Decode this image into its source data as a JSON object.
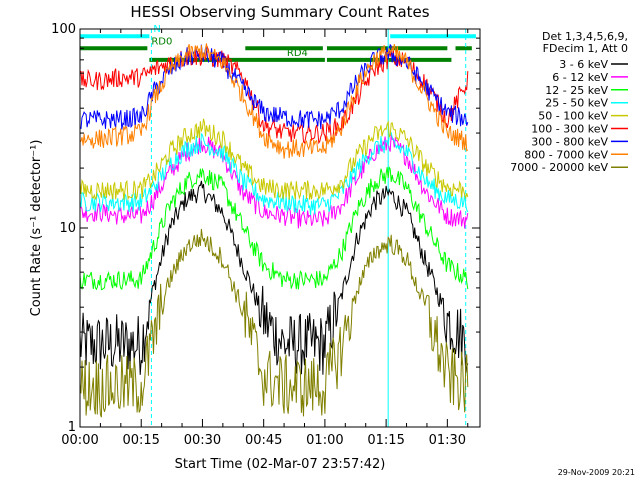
{
  "chart_data": {
    "type": "line",
    "title": "HESSI Observing Summary Count Rates",
    "xlabel": "Start Time (02-Mar-07 23:57:42)",
    "ylabel": "Count Rate (s⁻¹ detector⁻¹)",
    "yscale": "log",
    "ylim": [
      1,
      100
    ],
    "xlim_minutes": [
      0,
      98
    ],
    "x_ticks": [
      {
        "t": 0,
        "label": "00:00"
      },
      {
        "t": 15,
        "label": "00:15"
      },
      {
        "t": 30,
        "label": "00:30"
      },
      {
        "t": 45,
        "label": "00:45"
      },
      {
        "t": 60,
        "label": "01:00"
      },
      {
        "t": 75,
        "label": "01:15"
      },
      {
        "t": 90,
        "label": "01:30"
      }
    ],
    "y_ticks": [
      {
        "v": 1,
        "label": "1"
      },
      {
        "v": 10,
        "label": "10"
      },
      {
        "v": 100,
        "label": "100"
      }
    ],
    "legend_header": [
      "Det 1,3,4,5,6,9,",
      "FDecim 1, Att 0"
    ],
    "legend_placement": "right",
    "footer_date": "29-Nov-2009 20:21",
    "flags": [
      {
        "label": "N",
        "color": "#00ffff",
        "level": 92,
        "segments": [
          [
            0,
            17
          ],
          [
            76,
            97
          ]
        ]
      },
      {
        "label": "RD0",
        "color": "#008000",
        "level": 80,
        "segments": [
          [
            0,
            16.5
          ],
          [
            40.5,
            59.5
          ],
          [
            60.5,
            90
          ],
          [
            92,
            96
          ]
        ]
      },
      {
        "label": "RD4",
        "color": "#008000",
        "level": 70,
        "segments": [
          [
            17,
            60
          ],
          [
            60.5,
            91
          ]
        ]
      }
    ],
    "vlines": [
      {
        "t": 0,
        "style": "solid",
        "color": "#00ffff"
      },
      {
        "t": 17.5,
        "style": "dashed",
        "color": "#00ffff"
      },
      {
        "t": 75.5,
        "style": "solid",
        "color": "#00ffff"
      },
      {
        "t": 94.5,
        "style": "dashed",
        "color": "#00ffff"
      }
    ],
    "x": [
      0,
      5,
      10,
      15,
      18,
      22,
      26,
      30,
      35,
      40,
      45,
      50,
      55,
      60,
      64,
      68,
      72,
      76,
      80,
      85,
      90,
      95
    ],
    "series": [
      {
        "name": "3 - 6 keV",
        "color": "#000000",
        "values": [
          2.6,
          2.6,
          2.6,
          2.6,
          5,
          10,
          14,
          15.5,
          12,
          6.5,
          3.5,
          2.6,
          2.6,
          2.6,
          4.5,
          9,
          13.5,
          15,
          12,
          6.5,
          3.5,
          2.6
        ]
      },
      {
        "name": "6 - 12 keV",
        "color": "#ff00ff",
        "values": [
          12,
          12,
          11.5,
          11.5,
          14,
          19,
          24,
          27,
          23,
          15,
          12,
          11.5,
          11,
          11,
          13,
          18,
          24,
          27,
          23,
          15,
          11.5,
          11
        ]
      },
      {
        "name": "12 - 25 keV",
        "color": "#00ff00",
        "values": [
          5.5,
          5.5,
          5.5,
          5.5,
          8,
          13,
          17,
          19,
          16,
          10,
          6.5,
          5.5,
          5.5,
          5.5,
          7.5,
          12.5,
          17,
          19,
          16,
          10,
          6.5,
          5.5
        ]
      },
      {
        "name": "25 - 50 keV",
        "color": "#00ffff",
        "values": [
          13.5,
          13.5,
          13.5,
          13.5,
          16,
          21,
          25,
          27,
          24,
          17,
          14,
          13.5,
          13,
          13,
          15,
          20,
          25,
          27,
          24,
          17,
          14,
          13.5
        ]
      },
      {
        "name": "50 - 100 keV",
        "color": "#c8c800",
        "values": [
          15.5,
          15.5,
          15.5,
          15.5,
          18,
          24,
          29,
          32,
          28,
          20,
          16,
          15.5,
          15.5,
          15.5,
          17,
          23,
          29,
          32,
          28,
          20,
          16,
          15.5
        ]
      },
      {
        "name": "100 - 300 keV",
        "color": "#ff0000",
        "values": [
          55,
          55,
          57,
          57,
          62,
          68,
          72,
          73,
          70,
          58,
          33,
          30,
          30,
          30,
          33,
          45,
          63,
          72,
          68,
          52,
          35,
          55
        ]
      },
      {
        "name": "300 - 800 keV",
        "color": "#0000ff",
        "values": [
          35,
          35,
          35,
          36,
          48,
          62,
          72,
          75,
          68,
          50,
          38,
          36,
          35,
          35,
          40,
          55,
          70,
          75,
          68,
          50,
          38,
          35
        ]
      },
      {
        "name": "800 - 7000 keV",
        "color": "#ff8000",
        "values": [
          28,
          28,
          29,
          30,
          44,
          62,
          74,
          78,
          68,
          46,
          29,
          25,
          25,
          25,
          32,
          52,
          70,
          78,
          68,
          45,
          30,
          27
        ]
      },
      {
        "name": "7000 - 20000 keV",
        "color": "#808000",
        "values": [
          1.6,
          1.6,
          1.6,
          1.6,
          2.8,
          5.5,
          8,
          9,
          7,
          3.8,
          1.8,
          1.6,
          1.6,
          1.6,
          2.5,
          5,
          7.5,
          8.5,
          7,
          3.8,
          1.8,
          1.6
        ]
      }
    ]
  }
}
